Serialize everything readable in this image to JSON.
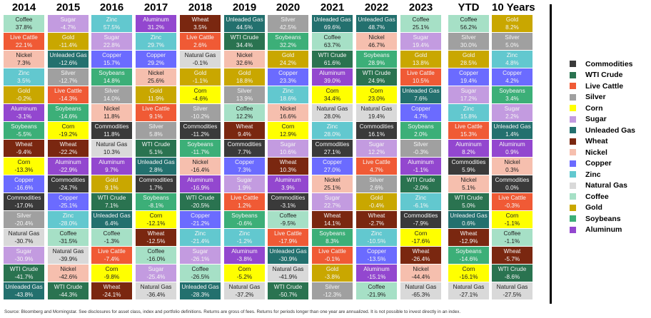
{
  "colors": {
    "Commodities": "#3a3a3a",
    "WTI Crude": "#2a7350",
    "Live Cattle": "#f05a35",
    "Silver": "#a0a0a0",
    "Corn": "#ffff00",
    "Sugar": "#c39be0",
    "Unleaded Gas": "#23706e",
    "Wheat": "#7a2710",
    "Nickel": "#f6bfae",
    "Copper": "#6b6bff",
    "Zinc": "#62c8cf",
    "Natural Gas": "#d9d9d9",
    "Coffee": "#a6e0c6",
    "Gold": "#c9a700",
    "Soybeans": "#3caf78",
    "Aluminum": "#9347cf"
  },
  "dark_text": [
    "Coffee",
    "Nickel",
    "Natural Gas",
    "Corn"
  ],
  "chart_data": {
    "type": "table",
    "title": "Commodity returns ranked by period",
    "columns": [
      {
        "header": "2014",
        "cells": [
          [
            "Coffee",
            "37.8%"
          ],
          [
            "Live Cattle",
            "22.1%"
          ],
          [
            "Nickel",
            "7.3%"
          ],
          [
            "Zinc",
            "3.5%"
          ],
          [
            "Gold",
            "-0.2%"
          ],
          [
            "Aluminum",
            "-3.1%"
          ],
          [
            "Soybeans",
            "-5.5%"
          ],
          [
            "Wheat",
            "-9.4%"
          ],
          [
            "Corn",
            "-13.3%"
          ],
          [
            "Copper",
            "-16.6%"
          ],
          [
            "Commodities",
            "-17.0%"
          ],
          [
            "Silver",
            "-20.4%"
          ],
          [
            "Natural Gas",
            "-30.7%"
          ],
          [
            "Sugar",
            "-30.9%"
          ],
          [
            "WTI Crude",
            "-41.7%"
          ],
          [
            "Unleaded Gas",
            "-43.8%"
          ]
        ]
      },
      {
        "header": "2015",
        "cells": [
          [
            "Sugar",
            "-4.7%"
          ],
          [
            "Gold",
            "-11.4%"
          ],
          [
            "Unleaded Gas",
            "-12.6%"
          ],
          [
            "Silver",
            "-12.7%"
          ],
          [
            "Live Cattle",
            "-14.3%"
          ],
          [
            "Soybeans",
            "-14.6%"
          ],
          [
            "Corn",
            "-19.2%"
          ],
          [
            "Wheat",
            "-22.2%"
          ],
          [
            "Aluminum",
            "-22.9%"
          ],
          [
            "Commodities",
            "-24.7%"
          ],
          [
            "Copper",
            "-25.1%"
          ],
          [
            "Zinc",
            "-28.0%"
          ],
          [
            "Coffee",
            "-31.5%"
          ],
          [
            "Natural Gas",
            "-39.9%"
          ],
          [
            "Nickel",
            "-42.6%"
          ],
          [
            "WTI Crude",
            "-44.3%"
          ]
        ]
      },
      {
        "header": "2016",
        "cells": [
          [
            "Zinc",
            "57.5%"
          ],
          [
            "Sugar",
            "22.8%"
          ],
          [
            "Copper",
            "15.7%"
          ],
          [
            "Soybeans",
            "14.8%"
          ],
          [
            "Silver",
            "14.0%"
          ],
          [
            "Nickel",
            "11.8%"
          ],
          [
            "Commodities",
            "11.8%"
          ],
          [
            "Natural Gas",
            "10.3%"
          ],
          [
            "Aluminum",
            "9.7%"
          ],
          [
            "Gold",
            "9.1%"
          ],
          [
            "WTI Crude",
            "7.1%"
          ],
          [
            "Unleaded Gas",
            "6.4%"
          ],
          [
            "Coffee",
            "-1.3%"
          ],
          [
            "Live Cattle",
            "-7.4%"
          ],
          [
            "Corn",
            "-9.8%"
          ],
          [
            "Wheat",
            "-24.1%"
          ]
        ]
      },
      {
        "header": "2017",
        "cells": [
          [
            "Aluminum",
            "31.2%"
          ],
          [
            "Zinc",
            "29.7%"
          ],
          [
            "Copper",
            "29.2%"
          ],
          [
            "Nickel",
            "25.6%"
          ],
          [
            "Gold",
            "11.9%"
          ],
          [
            "Live Cattle",
            "9.1%"
          ],
          [
            "Silver",
            "5.8%"
          ],
          [
            "WTI Crude",
            "5.1%"
          ],
          [
            "Unleaded Gas",
            "2.8%"
          ],
          [
            "Commodities",
            "1.7%"
          ],
          [
            "Soybeans",
            "-8.1%"
          ],
          [
            "Corn",
            "-12.1%"
          ],
          [
            "Wheat",
            "-12.5%"
          ],
          [
            "Coffee",
            "-16.0%"
          ],
          [
            "Sugar",
            "-25.4%"
          ],
          [
            "Natural Gas",
            "-36.4%"
          ]
        ]
      },
      {
        "header": "2018",
        "cells": [
          [
            "Wheat",
            "3.5%"
          ],
          [
            "Live Cattle",
            "2.6%"
          ],
          [
            "Natural Gas",
            "-0.1%"
          ],
          [
            "Gold",
            "-1.1%"
          ],
          [
            "Corn",
            "-4.6%"
          ],
          [
            "Silver",
            "-10.2%"
          ],
          [
            "Commodities",
            "-11.2%"
          ],
          [
            "Soybeans",
            "-11.7%"
          ],
          [
            "Nickel",
            "-16.4%"
          ],
          [
            "Aluminum",
            "-16.9%"
          ],
          [
            "WTI Crude",
            "-20.5%"
          ],
          [
            "Copper",
            "-21.2%"
          ],
          [
            "Zinc",
            "-21.4%"
          ],
          [
            "Sugar",
            "-26.1%"
          ],
          [
            "Coffee",
            "-26.5%"
          ],
          [
            "Unleaded Gas",
            "-28.3%"
          ]
        ]
      },
      {
        "header": "2019",
        "cells": [
          [
            "Unleaded Gas",
            "44.5%"
          ],
          [
            "WTI Crude",
            "34.4%"
          ],
          [
            "Nickel",
            "32.6%"
          ],
          [
            "Gold",
            "18.8%"
          ],
          [
            "Silver",
            "13.9%"
          ],
          [
            "Coffee",
            "12.2%"
          ],
          [
            "Wheat",
            "9.4%"
          ],
          [
            "Commodities",
            "7.7%"
          ],
          [
            "Copper",
            "7.3%"
          ],
          [
            "Sugar",
            "1.9%"
          ],
          [
            "Live Cattle",
            "1.2%"
          ],
          [
            "Soybeans",
            "-0.6%"
          ],
          [
            "Zinc",
            "-1.2%"
          ],
          [
            "Aluminum",
            "-3.8%"
          ],
          [
            "Corn",
            "-5.2%"
          ],
          [
            "Natural Gas",
            "-37.2%"
          ]
        ]
      },
      {
        "header": "2020",
        "cells": [
          [
            "Silver",
            "42.5%"
          ],
          [
            "Soybeans",
            "32.2%"
          ],
          [
            "Gold",
            "24.2%"
          ],
          [
            "Copper",
            "23.3%"
          ],
          [
            "Zinc",
            "18.6%"
          ],
          [
            "Nickel",
            "16.6%"
          ],
          [
            "Corn",
            "12.9%"
          ],
          [
            "Sugar",
            "10.6%"
          ],
          [
            "Wheat",
            "10.3%"
          ],
          [
            "Aluminum",
            "3.9%"
          ],
          [
            "Commodities",
            "-3.1%"
          ],
          [
            "Coffee",
            "-9.5%"
          ],
          [
            "Live Cattle",
            "-17.9%"
          ],
          [
            "Unleaded Gas",
            "-30.9%"
          ],
          [
            "Natural Gas",
            "-41.9%"
          ],
          [
            "WTI Crude",
            "-50.7%"
          ]
        ]
      },
      {
        "header": "2021",
        "cells": [
          [
            "Unleaded Gas",
            "69.6%"
          ],
          [
            "Coffee",
            "63.7%"
          ],
          [
            "WTI Crude",
            "61.6%"
          ],
          [
            "Aluminum",
            "39.0%"
          ],
          [
            "Corn",
            "34.4%"
          ],
          [
            "Natural Gas",
            "28.0%"
          ],
          [
            "Zinc",
            "28.0%"
          ],
          [
            "Commodities",
            "27.1%"
          ],
          [
            "Copper",
            "27.0%"
          ],
          [
            "Nickel",
            "25.1%"
          ],
          [
            "Sugar",
            "22.7%"
          ],
          [
            "Wheat",
            "14.1%"
          ],
          [
            "Soybeans",
            "8.3%"
          ],
          [
            "Live Cattle",
            "-0.1%"
          ],
          [
            "Gold",
            "-3.8%"
          ],
          [
            "Silver",
            "-12.3%"
          ]
        ]
      },
      {
        "header": "2022",
        "cells": [
          [
            "Unleaded Gas",
            "48.7%"
          ],
          [
            "Nickel",
            "46.7%"
          ],
          [
            "Soybeans",
            "28.9%"
          ],
          [
            "WTI Crude",
            "24.9%"
          ],
          [
            "Corn",
            "23.0%"
          ],
          [
            "Natural Gas",
            "19.4%"
          ],
          [
            "Commodities",
            "16.1%"
          ],
          [
            "Sugar",
            "12.2%"
          ],
          [
            "Live Cattle",
            "4.7%"
          ],
          [
            "Silver",
            "2.6%"
          ],
          [
            "Gold",
            "-0.4%"
          ],
          [
            "Wheat",
            "-2.7%"
          ],
          [
            "Zinc",
            "-10.5%"
          ],
          [
            "Copper",
            "-13.5%"
          ],
          [
            "Aluminum",
            "-15.1%"
          ],
          [
            "Coffee",
            "-21.9%"
          ]
        ]
      },
      {
        "header": "2023",
        "cells": [
          [
            "Coffee",
            "25.1%"
          ],
          [
            "Sugar",
            "19.4%"
          ],
          [
            "Gold",
            "13.8%"
          ],
          [
            "Live Cattle",
            "10.5%"
          ],
          [
            "Unleaded Gas",
            "7.6%"
          ],
          [
            "Copper",
            "4.7%"
          ],
          [
            "Soybeans",
            "2.0%"
          ],
          [
            "Silver",
            "-0.3%"
          ],
          [
            "Aluminum",
            "-1.1%"
          ],
          [
            "WTI Crude",
            "-2.0%"
          ],
          [
            "Zinc",
            "-6.1%"
          ],
          [
            "Commodities",
            "-7.9%"
          ],
          [
            "Corn",
            "-17.6%"
          ],
          [
            "Wheat",
            "-26.4%"
          ],
          [
            "Nickel",
            "-44.4%"
          ],
          [
            "Natural Gas",
            "-65.3%"
          ]
        ]
      },
      {
        "header": "YTD",
        "cells": [
          [
            "Coffee",
            "56.2%"
          ],
          [
            "Silver",
            "30.0%"
          ],
          [
            "Gold",
            "28.5%"
          ],
          [
            "Copper",
            "19.4%"
          ],
          [
            "Sugar",
            "17.2%"
          ],
          [
            "Zinc",
            "15.8%"
          ],
          [
            "Live Cattle",
            "15.3%"
          ],
          [
            "Aluminum",
            "8.2%"
          ],
          [
            "Commodities",
            "5.9%"
          ],
          [
            "Nickel",
            "5.1%"
          ],
          [
            "WTI Crude",
            "5.0%"
          ],
          [
            "Unleaded Gas",
            "0.6%"
          ],
          [
            "Wheat",
            "-12.9%"
          ],
          [
            "Soybeans",
            "-14.6%"
          ],
          [
            "Corn",
            "-16.1%"
          ],
          [
            "Natural Gas",
            "-27.1%"
          ]
        ]
      },
      {
        "header": "10 Years",
        "cells": [
          [
            "Gold",
            "8.2%"
          ],
          [
            "Silver",
            "5.0%"
          ],
          [
            "Zinc",
            "4.8%"
          ],
          [
            "Copper",
            "4.2%"
          ],
          [
            "Soybeans",
            "3.4%"
          ],
          [
            "Sugar",
            "2.2%"
          ],
          [
            "Unleaded Gas",
            "1.4%"
          ],
          [
            "Aluminum",
            "0.9%"
          ],
          [
            "Nickel",
            "0.3%"
          ],
          [
            "Commodities",
            "0.0%"
          ],
          [
            "Live Cattle",
            "-0.3%"
          ],
          [
            "Corn",
            "-1.1%"
          ],
          [
            "Coffee",
            "-1.1%"
          ],
          [
            "Wheat",
            "-5.7%"
          ],
          [
            "WTI Crude",
            "-8.6%"
          ],
          [
            "Natural Gas",
            "-27.5%"
          ]
        ]
      }
    ],
    "legend": [
      "Commodities",
      "WTI Crude",
      "Live Cattle",
      "Silver",
      "Corn",
      "Sugar",
      "Unleaded Gas",
      "Wheat",
      "Nickel",
      "Copper",
      "Zinc",
      "Natural Gas",
      "Coffee",
      "Gold",
      "Soybeans",
      "Aluminum"
    ],
    "legend_position": "right"
  },
  "footnote": "Source: Bloomberg and Morningstar. See disclosures for asset class, index and portfolio definitions. Returns are gross of fees. Returns for periods longer than one year are annualized. It is not possible to invest directly in an index."
}
